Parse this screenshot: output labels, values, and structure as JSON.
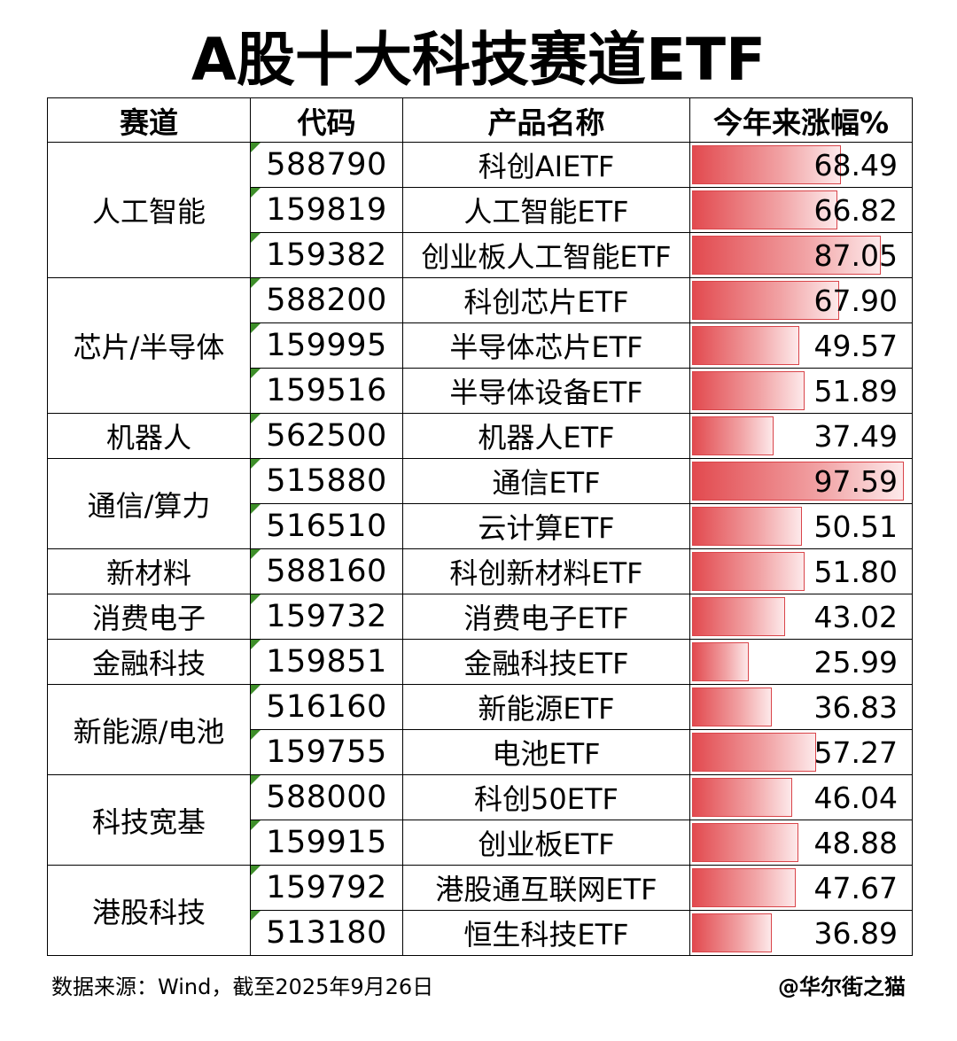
{
  "title": "A股十大科技赛道ETF",
  "headers": {
    "sector": "赛道",
    "code": "代码",
    "name": "产品名称",
    "change": "今年来涨幅%"
  },
  "groups": [
    {
      "sector": "人工智能",
      "rows": [
        {
          "code": "588790",
          "name": "科创AIETF",
          "change": "68.49",
          "value": 68.49
        },
        {
          "code": "159819",
          "name": "人工智能ETF",
          "change": "66.82",
          "value": 66.82
        },
        {
          "code": "159382",
          "name": "创业板人工智能ETF",
          "change": "87.05",
          "value": 87.05
        }
      ]
    },
    {
      "sector": "芯片/半导体",
      "rows": [
        {
          "code": "588200",
          "name": "科创芯片ETF",
          "change": "67.90",
          "value": 67.9
        },
        {
          "code": "159995",
          "name": "半导体芯片ETF",
          "change": "49.57",
          "value": 49.57
        },
        {
          "code": "159516",
          "name": "半导体设备ETF",
          "change": "51.89",
          "value": 51.89
        }
      ]
    },
    {
      "sector": "机器人",
      "rows": [
        {
          "code": "562500",
          "name": "机器人ETF",
          "change": "37.49",
          "value": 37.49
        }
      ]
    },
    {
      "sector": "通信/算力",
      "rows": [
        {
          "code": "515880",
          "name": "通信ETF",
          "change": "97.59",
          "value": 97.59
        },
        {
          "code": "516510",
          "name": "云计算ETF",
          "change": "50.51",
          "value": 50.51
        }
      ]
    },
    {
      "sector": "新材料",
      "rows": [
        {
          "code": "588160",
          "name": "科创新材料ETF",
          "change": "51.80",
          "value": 51.8
        }
      ]
    },
    {
      "sector": "消费电子",
      "rows": [
        {
          "code": "159732",
          "name": "消费电子ETF",
          "change": "43.02",
          "value": 43.02
        }
      ]
    },
    {
      "sector": "金融科技",
      "rows": [
        {
          "code": "159851",
          "name": "金融科技ETF",
          "change": "25.99",
          "value": 25.99
        }
      ]
    },
    {
      "sector": "新能源/电池",
      "rows": [
        {
          "code": "516160",
          "name": "新能源ETF",
          "change": "36.83",
          "value": 36.83
        },
        {
          "code": "159755",
          "name": "电池ETF",
          "change": "57.27",
          "value": 57.27
        }
      ]
    },
    {
      "sector": "科技宽基",
      "rows": [
        {
          "code": "588000",
          "name": "科创50ETF",
          "change": "46.04",
          "value": 46.04
        },
        {
          "code": "159915",
          "name": "创业板ETF",
          "change": "48.88",
          "value": 48.88
        }
      ]
    },
    {
      "sector": "港股科技",
      "rows": [
        {
          "code": "159792",
          "name": "港股通互联网ETF",
          "change": "47.67",
          "value": 47.67
        },
        {
          "code": "513180",
          "name": "恒生科技ETF",
          "change": "36.89",
          "value": 36.89
        }
      ]
    }
  ],
  "bar_max": 100,
  "colors": {
    "bar": "#e24a4f",
    "flag": "#3e8f2a"
  },
  "footer": {
    "source": "数据来源：Wind，截至2025年9月26日",
    "credit": "@华尔街之猫"
  }
}
